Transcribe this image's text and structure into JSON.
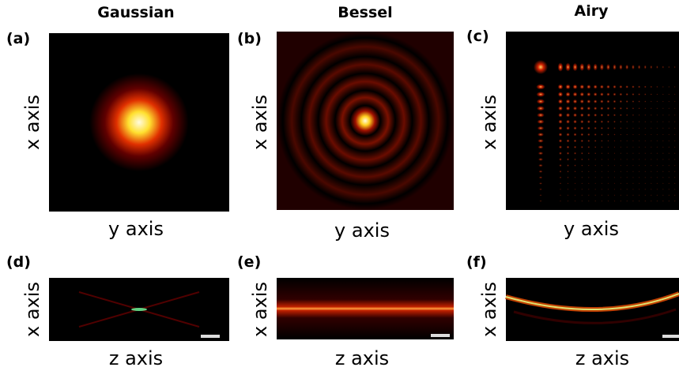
{
  "columns": [
    {
      "title": "Gaussian",
      "panels": [
        {
          "label": "(a)",
          "vertical_axis": "x axis",
          "horizontal_axis": "y axis"
        },
        {
          "label": "(d)",
          "vertical_axis": "x axis",
          "horizontal_axis": "z axis"
        }
      ]
    },
    {
      "title": "Bessel",
      "panels": [
        {
          "label": "(b)",
          "vertical_axis": "x axis",
          "horizontal_axis": "y axis"
        },
        {
          "label": "(e)",
          "vertical_axis": "x axis",
          "horizontal_axis": "z axis"
        }
      ]
    },
    {
      "title": "Airy",
      "panels": [
        {
          "label": "(c)",
          "vertical_axis": "x axis",
          "horizontal_axis": "y axis"
        },
        {
          "label": "(f)",
          "vertical_axis": "x axis",
          "horizontal_axis": "z axis"
        }
      ]
    }
  ]
}
